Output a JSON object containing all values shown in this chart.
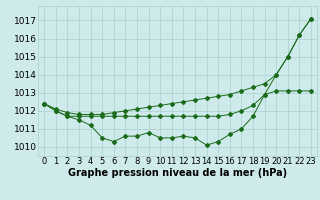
{
  "title": "Graphe pression niveau de la mer (hPa)",
  "background_color": "#ceeaea",
  "grid_color": "#aacfcf",
  "line_color": "#1a6b1a",
  "hours": [
    0,
    1,
    2,
    3,
    4,
    5,
    6,
    7,
    8,
    9,
    10,
    11,
    12,
    13,
    14,
    15,
    16,
    17,
    18,
    19,
    20,
    21,
    22,
    23
  ],
  "series1": [
    1012.4,
    1012.0,
    1011.7,
    1011.5,
    1011.2,
    1010.5,
    1010.3,
    1010.6,
    1010.6,
    1010.8,
    1010.5,
    1010.5,
    1010.6,
    1010.5,
    1010.1,
    1010.3,
    1010.7,
    1011.0,
    1011.7,
    1012.9,
    1014.0,
    1015.0,
    1016.2,
    1017.1
  ],
  "series2": [
    1012.4,
    1012.0,
    1011.7,
    1011.7,
    1011.7,
    1011.7,
    1011.7,
    1011.7,
    1011.7,
    1011.7,
    1011.7,
    1011.7,
    1011.7,
    1011.7,
    1011.7,
    1011.7,
    1011.8,
    1012.0,
    1012.3,
    1012.9,
    1013.1,
    1013.1,
    1013.1,
    1013.1
  ],
  "series3": [
    1012.4,
    1012.1,
    1011.9,
    1011.8,
    1011.8,
    1011.8,
    1011.9,
    1012.0,
    1012.1,
    1012.2,
    1012.3,
    1012.4,
    1012.5,
    1012.6,
    1012.7,
    1012.8,
    1012.9,
    1013.1,
    1013.3,
    1013.5,
    1014.0,
    1015.0,
    1016.2,
    1017.1
  ],
  "ylim_min": 1009.5,
  "ylim_max": 1017.8,
  "yticks": [
    1010,
    1011,
    1012,
    1013,
    1014,
    1015,
    1016,
    1017
  ],
  "xlabel_fontsize": 6,
  "ylabel_fontsize": 6.5,
  "title_fontsize": 7,
  "figwidth": 3.2,
  "figheight": 2.0,
  "dpi": 100
}
